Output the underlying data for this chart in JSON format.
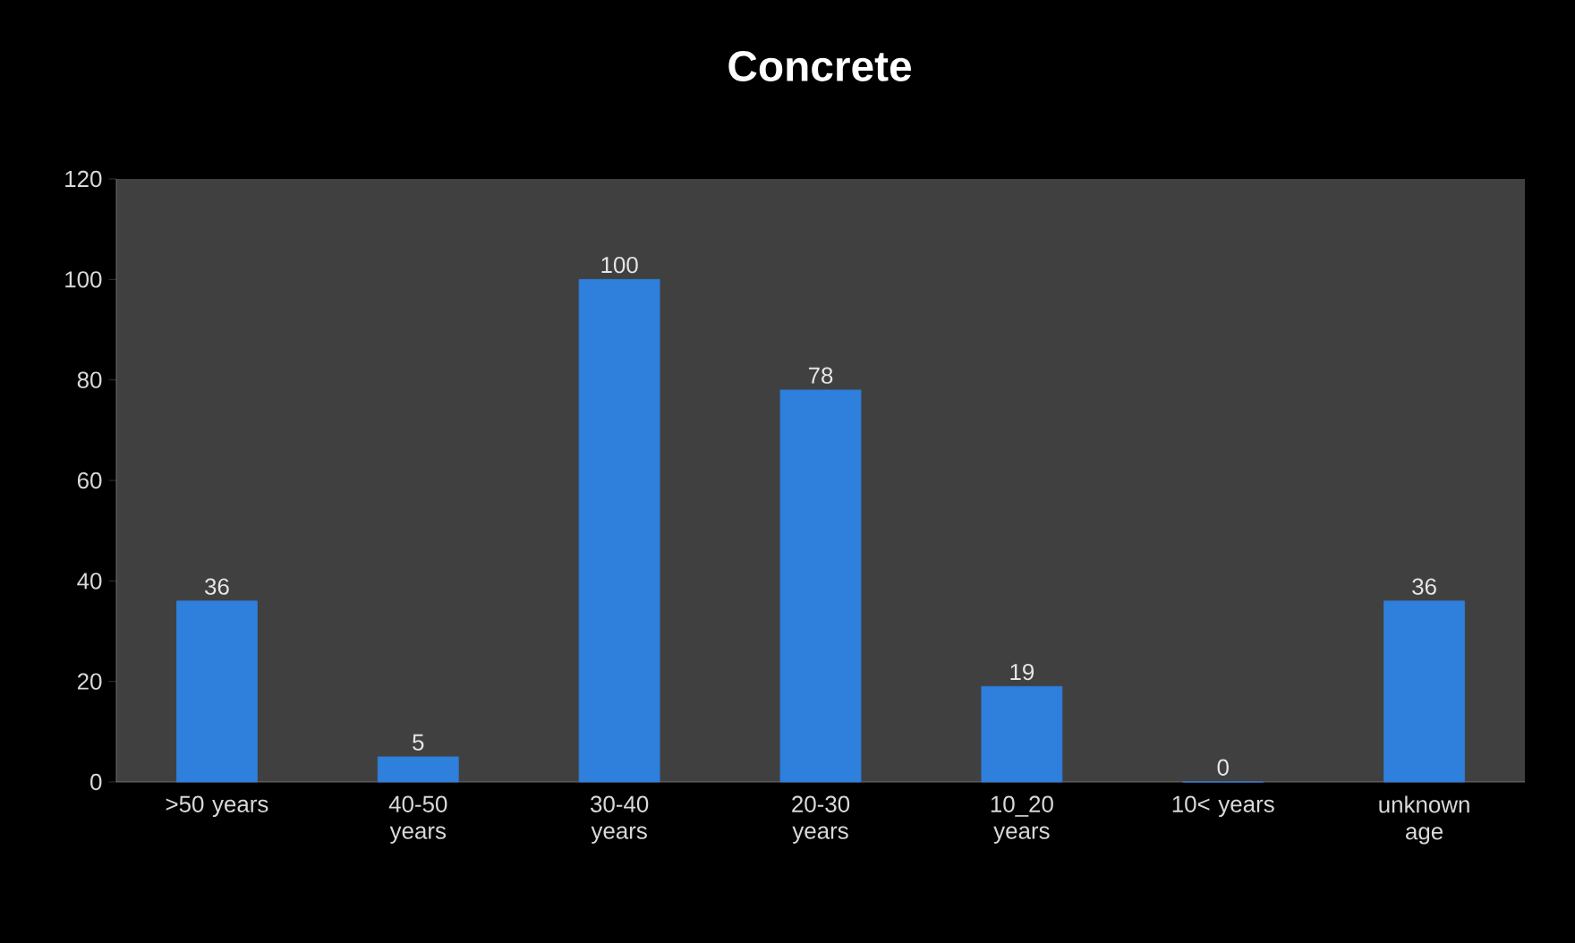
{
  "chart_data": {
    "type": "bar",
    "title": "Concrete",
    "categories": [
      ">50 years",
      "40-50 years",
      "30-40 years",
      "20-30 years",
      "10_20 years",
      "10< years",
      "unknown age"
    ],
    "values": [
      36,
      5,
      100,
      78,
      19,
      0,
      36
    ],
    "value_labels": [
      "36",
      "5",
      "100",
      "78",
      "19",
      "0",
      "36"
    ],
    "color": "#2f7fdc",
    "ylim": [
      0,
      120
    ],
    "yticks": [
      0,
      20,
      40,
      60,
      80,
      100,
      120
    ],
    "grid": false
  }
}
